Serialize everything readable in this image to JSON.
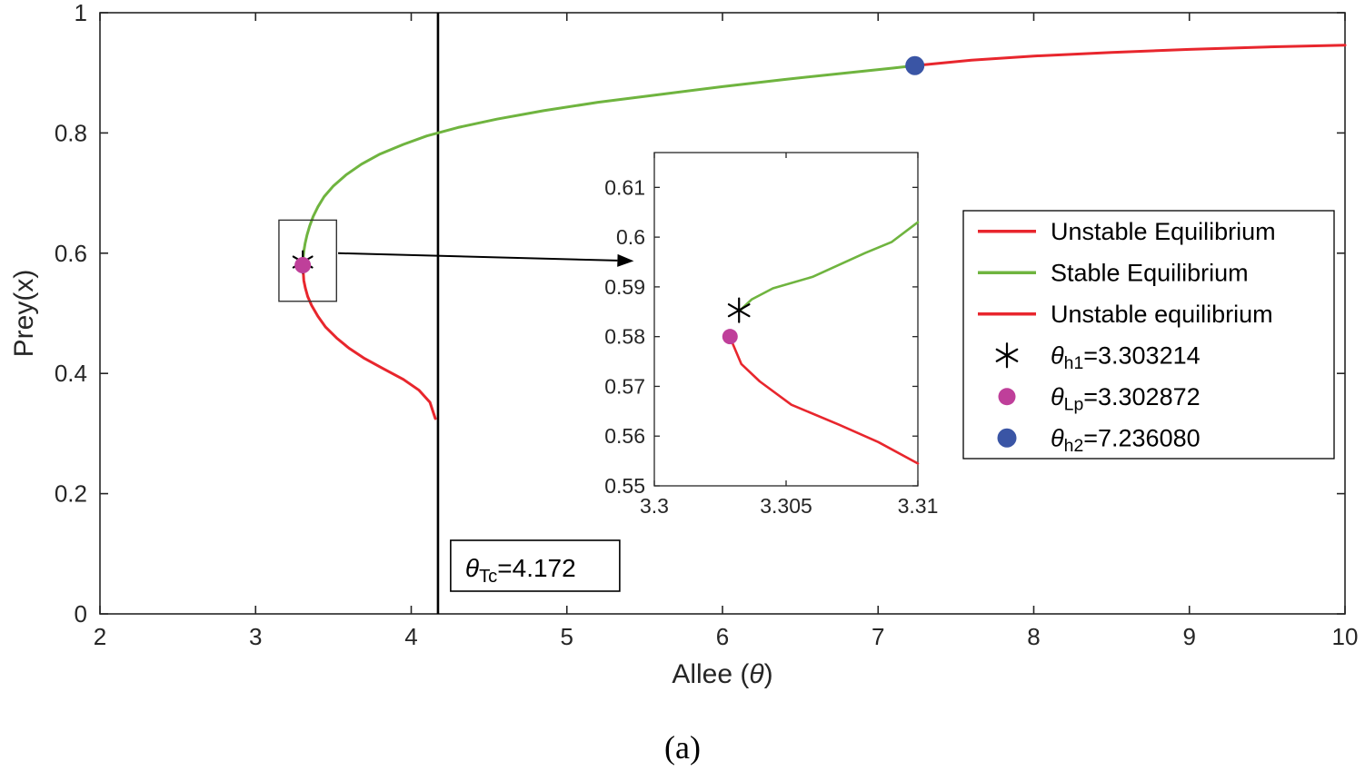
{
  "caption": "(a)",
  "colors": {
    "red": "#e8262d",
    "green": "#6fb43f",
    "magenta": "#bf3f9a",
    "blue": "#3a55a5",
    "axis": "#262626",
    "black": "#000000",
    "white": "#ffffff"
  },
  "chart_data": {
    "type": "line",
    "title": "",
    "xlabel": {
      "pre": "Allee (",
      "sym": "θ",
      "post": ")"
    },
    "ylabel": "Prey(x)",
    "xlim": [
      2,
      10
    ],
    "ylim": [
      0,
      1
    ],
    "xticks": [
      2,
      3,
      4,
      5,
      6,
      7,
      8,
      9,
      10
    ],
    "yticks": [
      0,
      0.2,
      0.4,
      0.6,
      0.8,
      1
    ],
    "grid": false,
    "legend_position": "right-middle",
    "series": [
      {
        "name": "Stable Equilibrium",
        "color_key": "green",
        "points": [
          [
            3.3032,
            0.585
          ],
          [
            3.306,
            0.593
          ],
          [
            3.31,
            0.603
          ],
          [
            3.318,
            0.616
          ],
          [
            3.33,
            0.63
          ],
          [
            3.347,
            0.645
          ],
          [
            3.37,
            0.661
          ],
          [
            3.4,
            0.677
          ],
          [
            3.44,
            0.694
          ],
          [
            3.5,
            0.712
          ],
          [
            3.58,
            0.73
          ],
          [
            3.68,
            0.748
          ],
          [
            3.8,
            0.765
          ],
          [
            3.95,
            0.781
          ],
          [
            4.1,
            0.795
          ],
          [
            4.3,
            0.809
          ],
          [
            4.55,
            0.823
          ],
          [
            4.85,
            0.837
          ],
          [
            5.2,
            0.851
          ],
          [
            5.6,
            0.864
          ],
          [
            6.0,
            0.877
          ],
          [
            6.4,
            0.889
          ],
          [
            6.8,
            0.9
          ],
          [
            7.1,
            0.908
          ],
          [
            7.236,
            0.912
          ]
        ]
      },
      {
        "name": "Unstable Equilibrium",
        "color_key": "red",
        "points": [
          [
            7.236,
            0.912
          ],
          [
            7.6,
            0.921
          ],
          [
            8.0,
            0.928
          ],
          [
            8.5,
            0.934
          ],
          [
            9.0,
            0.939
          ],
          [
            9.5,
            0.943
          ],
          [
            10.0,
            0.946
          ]
        ]
      },
      {
        "name": "Unstable equilibrium",
        "color_key": "red",
        "points": [
          [
            3.3032,
            0.585
          ],
          [
            3.3045,
            0.576
          ],
          [
            3.307,
            0.566
          ],
          [
            3.31,
            0.5545
          ],
          [
            3.32,
            0.542
          ],
          [
            3.335,
            0.528
          ],
          [
            3.36,
            0.513
          ],
          [
            3.4,
            0.495
          ],
          [
            3.45,
            0.477
          ],
          [
            3.52,
            0.459
          ],
          [
            3.6,
            0.442
          ],
          [
            3.7,
            0.425
          ],
          [
            3.82,
            0.408
          ],
          [
            3.95,
            0.39
          ],
          [
            4.05,
            0.372
          ],
          [
            4.12,
            0.352
          ],
          [
            4.155,
            0.325
          ]
        ]
      }
    ],
    "vline": {
      "x": 4.172,
      "label": {
        "sym": "θ",
        "sub": "Tc",
        "post": "=4.172"
      },
      "label_anchor": {
        "x": 4.3,
        "y": 0.068
      }
    },
    "markers": [
      {
        "id": "theta-h1",
        "type": "asterisk",
        "color_key": "black",
        "x": 3.303214,
        "y": 0.5853
      },
      {
        "id": "theta-Lp",
        "type": "dot",
        "color_key": "magenta",
        "x": 3.302872,
        "y": 0.58
      },
      {
        "id": "theta-h2",
        "type": "dot",
        "color_key": "blue",
        "x": 7.23608,
        "y": 0.912
      }
    ],
    "zoom_rect": {
      "x1": 3.15,
      "y1": 0.52,
      "x2": 3.52,
      "y2": 0.655
    },
    "arrow": {
      "x1": 3.53,
      "y1": 0.6,
      "x2": 5.43,
      "y2": 0.587
    },
    "inset": {
      "xlim": [
        3.3,
        3.31
      ],
      "ylim": [
        0.55,
        0.617
      ],
      "xticks": [
        {
          "v": 3.3,
          "label": "3.3"
        },
        {
          "v": 3.305,
          "label": "3.305"
        },
        {
          "v": 3.31,
          "label": "3.31"
        }
      ],
      "yticks": [
        {
          "v": 0.55,
          "label": "0.55"
        },
        {
          "v": 0.56,
          "label": "0.56"
        },
        {
          "v": 0.57,
          "label": "0.57"
        },
        {
          "v": 0.58,
          "label": "0.58"
        },
        {
          "v": 0.59,
          "label": "0.59"
        },
        {
          "v": 0.6,
          "label": "0.6"
        },
        {
          "v": 0.61,
          "label": "0.61"
        }
      ],
      "series": [
        {
          "name": "Stable Equilibrium",
          "color_key": "green",
          "points": [
            [
              3.3033,
              0.5855
            ],
            [
              3.3037,
              0.5875
            ],
            [
              3.3045,
              0.5897
            ],
            [
              3.306,
              0.592
            ],
            [
              3.308,
              0.5968
            ],
            [
              3.309,
              0.599
            ],
            [
              3.31,
              0.603
            ]
          ]
        },
        {
          "name": "Unstable equilibrium",
          "color_key": "red",
          "points": [
            [
              3.3029,
              0.5795
            ],
            [
              3.3033,
              0.5745
            ],
            [
              3.304,
              0.571
            ],
            [
              3.3052,
              0.5663
            ],
            [
              3.307,
              0.5623
            ],
            [
              3.3085,
              0.5588
            ],
            [
              3.31,
              0.5545
            ]
          ]
        }
      ],
      "markers": [
        {
          "id": "theta-h1",
          "type": "asterisk",
          "color_key": "black",
          "x": 3.303214,
          "y": 0.5853
        },
        {
          "id": "theta-Lp",
          "type": "dot",
          "color_key": "magenta",
          "x": 3.302872,
          "y": 0.58
        }
      ]
    },
    "legend": {
      "entries": [
        {
          "marker": "line",
          "color_key": "red",
          "label": {
            "pre": "Unstable Equilibrium"
          }
        },
        {
          "marker": "line",
          "color_key": "green",
          "label": {
            "pre": "Stable Equilibrium"
          }
        },
        {
          "marker": "line",
          "color_key": "red",
          "label": {
            "pre": "Unstable equilibrium"
          }
        },
        {
          "marker": "asterisk",
          "color_key": "black",
          "label": {
            "sym": "θ",
            "sub": "h1",
            "post": "=3.303214"
          }
        },
        {
          "marker": "dot",
          "color_key": "magenta",
          "label": {
            "sym": "θ",
            "sub": "Lp",
            "post": "=3.302872"
          }
        },
        {
          "marker": "dot",
          "color_key": "blue",
          "label": {
            "sym": "θ",
            "sub": "h2",
            "post": "=7.236080"
          }
        }
      ]
    }
  }
}
